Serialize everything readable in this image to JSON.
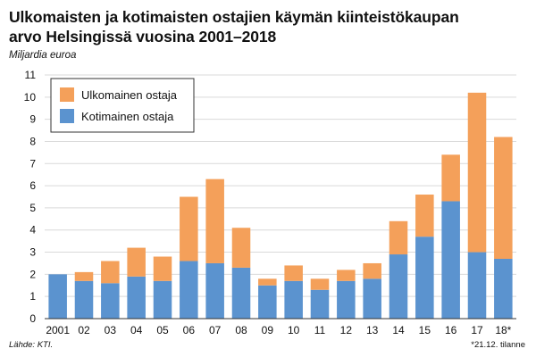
{
  "title_lines": [
    "Ulkomaisten ja kotimaisten ostajien käymän kiinteistökaupan",
    "arvo Helsingissä vuosina 2001–2018"
  ],
  "subtitle": "Miljardia euroa",
  "source": "Lähde: KTI.",
  "note": "*21.12. tilanne",
  "colors": {
    "foreign": "#F4A05A",
    "domestic": "#5B93CF",
    "axis": "#888888",
    "grid": "#d9d9d9"
  },
  "chart_data": {
    "type": "bar",
    "stacked": true,
    "categories": [
      "2001",
      "02",
      "03",
      "04",
      "05",
      "06",
      "07",
      "08",
      "09",
      "10",
      "11",
      "12",
      "13",
      "14",
      "15",
      "16",
      "17",
      "18*"
    ],
    "series": [
      {
        "name": "Kotimainen ostaja",
        "color": "#5B93CF",
        "values": [
          2.0,
          1.7,
          1.6,
          1.9,
          1.7,
          2.6,
          2.5,
          2.3,
          1.5,
          1.7,
          1.3,
          1.7,
          1.8,
          2.9,
          3.7,
          5.3,
          3.0,
          2.7
        ]
      },
      {
        "name": "Ulkomainen ostaja",
        "color": "#F4A05A",
        "values": [
          0.0,
          0.4,
          1.0,
          1.3,
          1.1,
          2.9,
          3.8,
          1.8,
          0.3,
          0.7,
          0.5,
          0.5,
          0.7,
          1.5,
          1.9,
          2.1,
          7.2,
          5.5
        ]
      }
    ],
    "ylim": [
      0,
      11
    ],
    "yticks": [
      0,
      1,
      2,
      3,
      4,
      5,
      6,
      7,
      8,
      9,
      10,
      11
    ],
    "grid": true,
    "legend": {
      "position": "top-left",
      "order": [
        "Ulkomainen ostaja",
        "Kotimainen ostaja"
      ]
    }
  }
}
